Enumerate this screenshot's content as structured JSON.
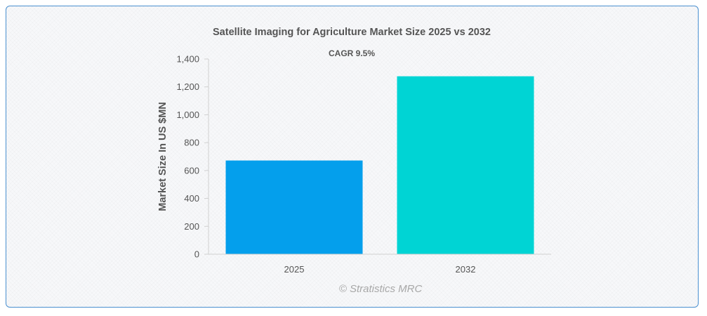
{
  "chart_data": {
    "type": "bar",
    "title": "Satellite Imaging for Agriculture Market Size 2025 vs 2032",
    "subtitle": "CAGR 9.5%",
    "ylabel": "Market Size In US $MN",
    "xlabel": "",
    "categories": [
      "2025",
      "2032"
    ],
    "values": [
      672,
      1276
    ],
    "colors": [
      "#049fec",
      "#00d4d4"
    ],
    "ylim": [
      0,
      1400
    ],
    "yticks": [
      0,
      200,
      400,
      600,
      800,
      1000,
      1200,
      1400
    ],
    "ytick_labels": [
      "0",
      "200",
      "400",
      "600",
      "800",
      "1,000",
      "1,200",
      "1,400"
    ],
    "grid": false,
    "legend": "none"
  },
  "watermark": "© Stratistics MRC"
}
